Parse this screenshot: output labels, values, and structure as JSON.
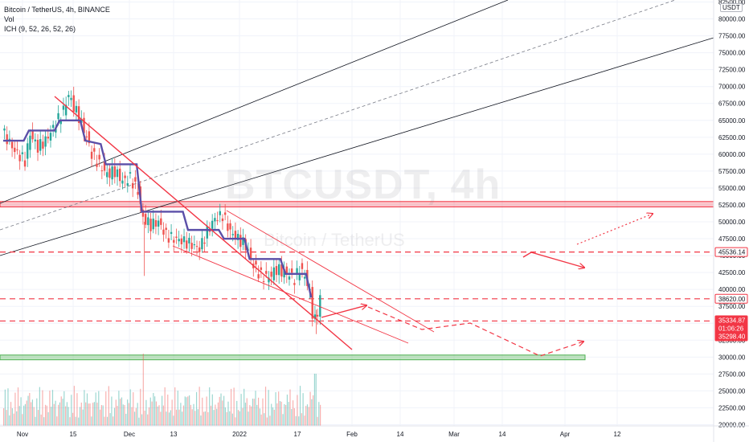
{
  "legend": {
    "symbol_line": "Bitcoin / TetherUS, 4h, BINANCE",
    "vol_line": "Vol",
    "ich_line": "ICH (9, 52, 26, 52, 26)"
  },
  "watermark": {
    "ticker": "BTCUSDT, 4h",
    "name": "Bitcoin / TetherUS"
  },
  "currency_badge": "USDT",
  "colors": {
    "up": "#26a69a",
    "down": "#ef5350",
    "ichimoku": "#5b4fa8",
    "drawing_red": "#f23645",
    "support_green": "#4caf50",
    "channel_line": "#131722"
  },
  "chart_data": {
    "type": "candlestick",
    "symbol": "BTCUSDT",
    "exchange": "BINANCE",
    "timeframe": "4h",
    "ylim": [
      20000,
      82500
    ],
    "y_ticks": [
      "82500.00",
      "80000.00",
      "77500.00",
      "75000.00",
      "72500.00",
      "70000.00",
      "67500.00",
      "65000.00",
      "62500.00",
      "60000.00",
      "57500.00",
      "55000.00",
      "52500.00",
      "50000.00",
      "47500.00",
      "45000.00",
      "42500.00",
      "40000.00",
      "37500.00",
      "35000.00",
      "32500.00",
      "30000.00",
      "27500.00",
      "25000.00",
      "22500.00",
      "20000.00"
    ],
    "x_ticks": [
      "Nov",
      "15",
      "Dec",
      "13",
      "2022",
      "17",
      "Feb",
      "14",
      "Mar",
      "14",
      "Apr",
      "12"
    ],
    "price_path": [
      [
        0,
        63500
      ],
      [
        5,
        60500
      ],
      [
        9,
        59000
      ],
      [
        11,
        63000
      ],
      [
        14,
        61000
      ],
      [
        17,
        62000
      ],
      [
        21,
        64500
      ],
      [
        24,
        66500
      ],
      [
        26,
        68800
      ],
      [
        28,
        67000
      ],
      [
        30,
        65500
      ],
      [
        33,
        62500
      ],
      [
        35,
        60000
      ],
      [
        38,
        58500
      ],
      [
        41,
        57000
      ],
      [
        44,
        57500
      ],
      [
        47,
        56000
      ],
      [
        50,
        56500
      ],
      [
        53,
        54500
      ],
      [
        55,
        50500
      ],
      [
        58,
        49500
      ],
      [
        61,
        50000
      ],
      [
        64,
        48000
      ],
      [
        67,
        47500
      ],
      [
        70,
        47200
      ],
      [
        73,
        46800
      ],
      [
        77,
        46000
      ],
      [
        80,
        48500
      ],
      [
        83,
        50500
      ],
      [
        86,
        51000
      ],
      [
        89,
        48500
      ],
      [
        92,
        47500
      ],
      [
        95,
        46500
      ],
      [
        98,
        43500
      ],
      [
        101,
        42000
      ],
      [
        104,
        41800
      ],
      [
        107,
        43000
      ],
      [
        110,
        42500
      ],
      [
        112,
        42200
      ],
      [
        114,
        41500
      ],
      [
        116,
        43000
      ],
      [
        118,
        42000
      ],
      [
        120,
        39500
      ],
      [
        121,
        36500
      ],
      [
        122,
        35400
      ],
      [
        123,
        36800
      ],
      [
        124,
        38600
      ]
    ],
    "ichimoku_line": [
      [
        0,
        62000
      ],
      [
        8,
        62000
      ],
      [
        10,
        63500
      ],
      [
        20,
        63500
      ],
      [
        22,
        65000
      ],
      [
        30,
        65000
      ],
      [
        32,
        62000
      ],
      [
        38,
        61500
      ],
      [
        40,
        58500
      ],
      [
        52,
        58500
      ],
      [
        54,
        51500
      ],
      [
        70,
        51500
      ],
      [
        72,
        48800
      ],
      [
        84,
        48800
      ],
      [
        86,
        47500
      ],
      [
        94,
        47500
      ],
      [
        96,
        44500
      ],
      [
        108,
        44500
      ],
      [
        110,
        42300
      ],
      [
        118,
        42300
      ],
      [
        120,
        38800
      ]
    ],
    "annotations": {
      "price_labels": [
        {
          "value": "45536.14",
          "role": "resistance-line"
        },
        {
          "value": "38620.00",
          "role": "current-level-line"
        },
        {
          "value": "35334.87",
          "role": "support-line"
        },
        {
          "value": "01:06:26",
          "role": "bar-countdown"
        },
        {
          "value": "35298.40",
          "role": "last-price"
        }
      ],
      "resistance_zone": [
        52200,
        53000
      ],
      "support_zone": [
        29600,
        30300
      ]
    }
  }
}
